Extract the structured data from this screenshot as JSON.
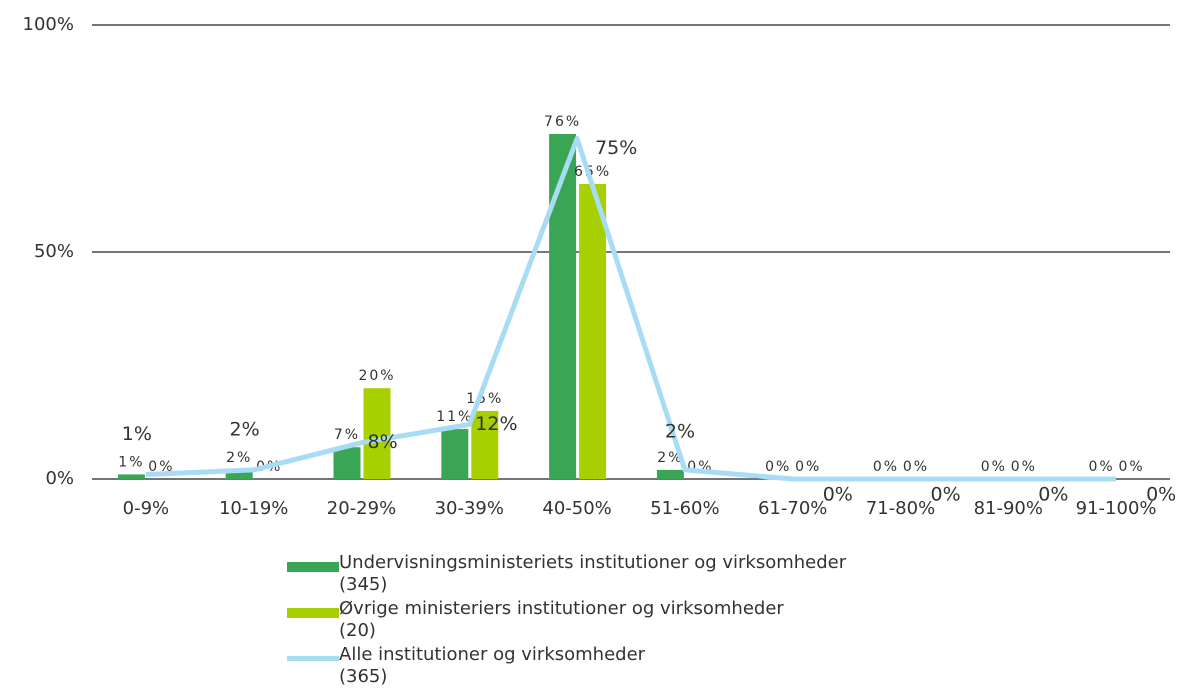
{
  "chart_data": {
    "type": "bar-line",
    "categories": [
      "0-9%",
      "10-19%",
      "20-29%",
      "30-39%",
      "40-50%",
      "51-60%",
      "61-70%",
      "71-80%",
      "81-90%",
      "91-100%"
    ],
    "series": [
      {
        "name": "Undervisningsministeriets institutioner og virksomheder\n(345)",
        "color": "#3aa655",
        "type": "bar",
        "values": [
          1,
          2,
          7,
          11,
          76,
          2,
          0,
          0,
          0,
          0
        ],
        "value_labels": [
          "1%",
          "2%",
          "7%",
          "11%",
          "76%",
          "2%",
          "0%",
          "0%",
          "0%",
          "0%"
        ]
      },
      {
        "name": "Øvrige ministeriers institutioner og virksomheder\n(20)",
        "color": "#a8d000",
        "type": "bar",
        "values": [
          0,
          0,
          20,
          15,
          65,
          0,
          0,
          0,
          0,
          0
        ],
        "value_labels": [
          "0%",
          "0%",
          "20%",
          "15%",
          "65%",
          "0%",
          "0%",
          "0%",
          "0%",
          "0%"
        ]
      },
      {
        "name": "Alle institutioner og virksomheder\n(365)",
        "color": "#a8dcf5",
        "type": "line",
        "values": [
          1,
          2,
          8,
          12,
          75,
          2,
          0,
          0,
          0,
          0
        ],
        "value_labels": [
          "1%",
          "2%",
          "8%",
          "12%",
          "75%",
          "2%",
          "0%",
          "0%",
          "0%",
          "0%"
        ]
      }
    ],
    "ylim": [
      0,
      100
    ],
    "yticks": [
      {
        "value": 0,
        "label": "0%"
      },
      {
        "value": 50,
        "label": "50%"
      },
      {
        "value": 100,
        "label": "100%"
      }
    ],
    "grid": true
  }
}
